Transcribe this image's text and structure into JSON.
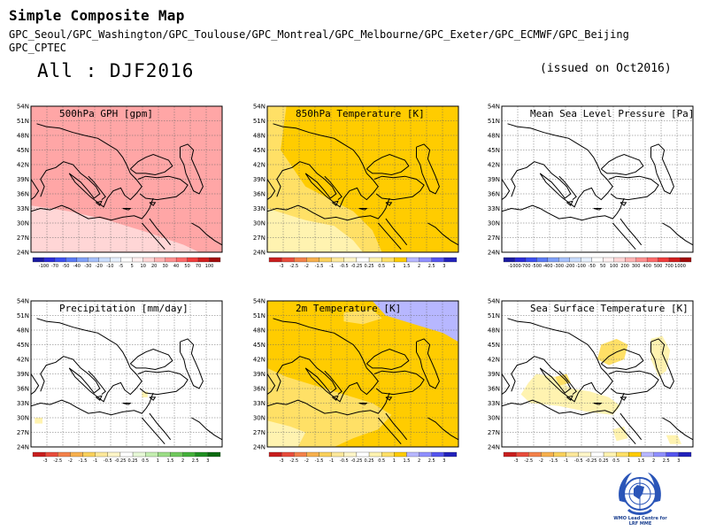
{
  "header": {
    "title": "Simple Composite Map",
    "models_line1": "GPC_Seoul/GPC_Washington/GPC_Toulouse/GPC_Montreal/GPC_Melbourne/GPC_Exeter/GPC_ECMWF/GPC_Beijing",
    "models_line2": "GPC_CPTEC",
    "season": "All : DJF2016",
    "issued": "(issued on Oct2016)"
  },
  "lat_labels": [
    "54N",
    "51N",
    "48N",
    "45N",
    "42N",
    "39N",
    "36N",
    "33N",
    "30N",
    "27N",
    "24N"
  ],
  "panels": [
    {
      "title": "500hPa GPH [gpm]",
      "field": "gph",
      "colorbar_labels": [
        "-100",
        "-70",
        "-50",
        "-40",
        "-30",
        "-20",
        "-10",
        "-5",
        "5",
        "10",
        "20",
        "30",
        "40",
        "50",
        "70",
        "100"
      ],
      "colorbar_colors": [
        "#1a1aa0",
        "#2b2bd8",
        "#3c4ff0",
        "#5a7af5",
        "#7fa0f8",
        "#a5c0fb",
        "#c8dcfd",
        "#e6f0fe",
        "#ffffff",
        "#fff0f0",
        "#ffd6d6",
        "#ffb4b4",
        "#ff8f8f",
        "#ff6a6a",
        "#f03c3c",
        "#d01e1e",
        "#a00a0a"
      ]
    },
    {
      "title": "850hPa Temperature [K]",
      "field": "t850",
      "colorbar_labels": [
        "-3",
        "-2.5",
        "-2",
        "-1.5",
        "-1",
        "-0.5",
        "-0.25",
        "0.25",
        "0.5",
        "1",
        "1.5",
        "2",
        "2.5",
        "3"
      ],
      "colorbar_colors": [
        "#c81e1e",
        "#e84c3c",
        "#f3814a",
        "#f7b04d",
        "#f9d05a",
        "#fde89a",
        "#fff6c8",
        "#ffffff",
        "#fff3b0",
        "#ffe066",
        "#ffcc00",
        "#b7b7ff",
        "#8f8fff",
        "#5555ee",
        "#2222bb"
      ]
    },
    {
      "title": "Mean Sea Level Pressure [Pa]",
      "field": "mslp",
      "colorbar_labels": [
        "-1000",
        "-700",
        "-500",
        "-400",
        "-300",
        "-200",
        "-100",
        "-50",
        "50",
        "100",
        "200",
        "300",
        "400",
        "500",
        "700",
        "1000"
      ],
      "colorbar_colors": [
        "#1a1aa0",
        "#2b2bd8",
        "#3c4ff0",
        "#5a7af5",
        "#7fa0f8",
        "#a5c0fb",
        "#c8dcfd",
        "#e6f0fe",
        "#ffffff",
        "#fff0f0",
        "#ffd6d6",
        "#ffb4b4",
        "#ff8f8f",
        "#ff6a6a",
        "#f03c3c",
        "#d01e1e",
        "#a00a0a"
      ]
    },
    {
      "title": "Precipitation [mm/day]",
      "field": "precip",
      "colorbar_labels": [
        "-3",
        "-2.5",
        "-2",
        "-1.5",
        "-1",
        "-0.5",
        "-0.25",
        "0.25",
        "0.5",
        "1",
        "1.5",
        "2",
        "2.5",
        "3"
      ],
      "colorbar_colors": [
        "#c81e1e",
        "#e84c3c",
        "#f3814a",
        "#f7b04d",
        "#f9d05a",
        "#fde89a",
        "#fff6c8",
        "#ffffff",
        "#e6f8d6",
        "#c4eeb0",
        "#9bdd86",
        "#6fc85c",
        "#43b03a",
        "#1f8f22",
        "#0a6a10"
      ]
    },
    {
      "title": "2m Temperature [K]",
      "field": "t2m",
      "colorbar_labels": [
        "-3",
        "-2.5",
        "-2",
        "-1.5",
        "-1",
        "-0.5",
        "-0.25",
        "0.25",
        "0.5",
        "1",
        "1.5",
        "2",
        "2.5",
        "3"
      ],
      "colorbar_colors": [
        "#c81e1e",
        "#e84c3c",
        "#f3814a",
        "#f7b04d",
        "#f9d05a",
        "#fde89a",
        "#fff6c8",
        "#ffffff",
        "#fff3b0",
        "#ffe066",
        "#ffcc00",
        "#b7b7ff",
        "#8f8fff",
        "#5555ee",
        "#2222bb"
      ]
    },
    {
      "title": "Sea Surface Temperature [K]",
      "field": "sst",
      "colorbar_labels": [
        "-3",
        "-2.5",
        "-2",
        "-1.5",
        "-1",
        "-0.5",
        "-0.25",
        "0.25",
        "0.5",
        "1",
        "1.5",
        "2",
        "2.5",
        "3"
      ],
      "colorbar_colors": [
        "#c81e1e",
        "#e84c3c",
        "#f3814a",
        "#f7b04d",
        "#f9d05a",
        "#fde89a",
        "#fff6c8",
        "#ffffff",
        "#fff3b0",
        "#ffe066",
        "#ffcc00",
        "#b7b7ff",
        "#8f8fff",
        "#5555ee",
        "#2222bb"
      ]
    }
  ],
  "logo": {
    "icon": "wmo-emblem-icon",
    "caption_line1": "WMO Lead Centre for",
    "caption_line2": "LRF MME"
  }
}
